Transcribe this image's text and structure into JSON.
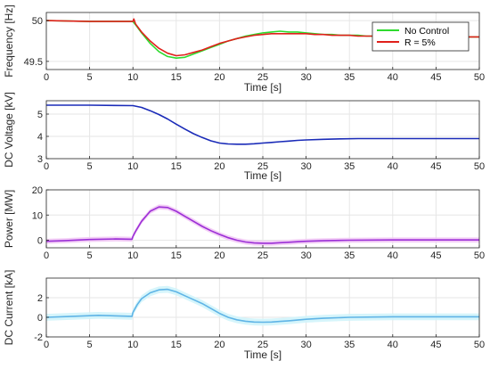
{
  "colors": {
    "no_control": "#2EDB2E",
    "r5": "#E0201B",
    "dc_voltage": "#1A2BB8",
    "power": "#9B2FD6",
    "power_band": "#F1C6F4",
    "dc_current": "#5FB4E6",
    "current_band": "#CFF3FA",
    "grid": "#E6E6E6",
    "axis": "#262626"
  },
  "chart_data": [
    {
      "type": "line",
      "xlabel": "Time [s]",
      "ylabel": "Frequency [Hz]",
      "xlim": [
        0,
        50
      ],
      "ylim": [
        49.4,
        50.1
      ],
      "xticks": [
        "0",
        "5",
        "10",
        "15",
        "20",
        "25",
        "30",
        "35",
        "40",
        "45",
        "50"
      ],
      "yticks": [
        "49.5",
        "50"
      ],
      "grid": true,
      "legend": "top-right",
      "series": [
        {
          "name": "No Control",
          "color_key": "no_control",
          "x": [
            0,
            5,
            10,
            10.3,
            11,
            12,
            13,
            14,
            15,
            16,
            17,
            18,
            19,
            20,
            21,
            22,
            23,
            24,
            25,
            26,
            27,
            28,
            29,
            30,
            31,
            32,
            33,
            34,
            35,
            36,
            37,
            38,
            39,
            40,
            41,
            42,
            43,
            44,
            45,
            46,
            47,
            48,
            49,
            50
          ],
          "y": [
            50.0,
            49.99,
            49.99,
            49.95,
            49.85,
            49.72,
            49.62,
            49.56,
            49.54,
            49.55,
            49.59,
            49.63,
            49.67,
            49.71,
            49.75,
            49.78,
            49.81,
            49.83,
            49.85,
            49.86,
            49.87,
            49.86,
            49.86,
            49.85,
            49.84,
            49.83,
            49.83,
            49.82,
            49.82,
            49.82,
            49.81,
            49.81,
            49.81,
            49.81,
            49.81,
            49.8,
            49.8,
            49.8,
            49.8,
            49.8,
            49.8,
            49.8,
            49.8,
            49.8
          ]
        },
        {
          "name": "R = 5%",
          "color_key": "r5",
          "x": [
            0,
            5,
            10,
            10.1,
            10.3,
            11,
            12,
            13,
            14,
            15,
            16,
            17,
            18,
            19,
            20,
            21,
            22,
            23,
            24,
            25,
            26,
            27,
            28,
            29,
            30,
            31,
            32,
            33,
            34,
            35,
            36,
            37,
            38,
            39,
            40,
            41,
            42,
            43,
            44,
            45,
            46,
            47,
            48,
            49,
            50
          ],
          "y": [
            50.0,
            49.99,
            49.99,
            50.02,
            49.96,
            49.86,
            49.75,
            49.66,
            49.6,
            49.57,
            49.58,
            49.61,
            49.64,
            49.68,
            49.72,
            49.75,
            49.78,
            49.8,
            49.82,
            49.83,
            49.84,
            49.84,
            49.84,
            49.84,
            49.84,
            49.83,
            49.83,
            49.82,
            49.82,
            49.82,
            49.81,
            49.81,
            49.81,
            49.81,
            49.81,
            49.81,
            49.8,
            49.8,
            49.8,
            49.8,
            49.8,
            49.8,
            49.8,
            49.8,
            49.8
          ]
        }
      ]
    },
    {
      "type": "line",
      "xlabel": "Time [s]",
      "ylabel": "DC Voltage [kV]",
      "xlim": [
        0,
        50
      ],
      "ylim": [
        3,
        5.6
      ],
      "xticks": [
        "0",
        "5",
        "10",
        "15",
        "20",
        "25",
        "30",
        "35",
        "40",
        "45",
        "50"
      ],
      "yticks": [
        "3",
        "4",
        "5"
      ],
      "grid": true,
      "series": [
        {
          "color_key": "dc_voltage",
          "x": [
            0,
            5,
            10,
            11,
            12,
            13,
            14,
            15,
            16,
            17,
            18,
            19,
            20,
            21,
            22,
            23,
            24,
            25,
            26,
            27,
            28,
            29,
            30,
            32,
            34,
            36,
            40,
            45,
            50
          ],
          "y": [
            5.4,
            5.4,
            5.38,
            5.3,
            5.15,
            4.98,
            4.78,
            4.55,
            4.33,
            4.12,
            3.95,
            3.8,
            3.7,
            3.66,
            3.65,
            3.65,
            3.67,
            3.7,
            3.73,
            3.76,
            3.79,
            3.82,
            3.84,
            3.87,
            3.89,
            3.9,
            3.9,
            3.9,
            3.9
          ]
        }
      ]
    },
    {
      "type": "line",
      "xlabel": "",
      "ylabel": "Power [MW]",
      "xlim": [
        0,
        50
      ],
      "ylim": [
        -3,
        20
      ],
      "xticks": [
        "0",
        "5",
        "10",
        "15",
        "20",
        "25",
        "30",
        "35",
        "40",
        "45",
        "50"
      ],
      "yticks": [
        "0",
        "10",
        "20"
      ],
      "grid": true,
      "series": [
        {
          "color_key": "power",
          "x": [
            0,
            2,
            5,
            8,
            9.9,
            10,
            10.3,
            11,
            12,
            13,
            14,
            15,
            16,
            17,
            18,
            19,
            20,
            21,
            22,
            23,
            24,
            25,
            26,
            27,
            28,
            29,
            30,
            32,
            35,
            40,
            45,
            50
          ],
          "y": [
            -0.4,
            -0.2,
            0.3,
            0.5,
            0.4,
            1.5,
            3.5,
            7.5,
            11.5,
            13.2,
            13.0,
            11.5,
            9.5,
            7.5,
            5.5,
            3.8,
            2.3,
            1.0,
            0.0,
            -0.7,
            -1.1,
            -1.2,
            -1.2,
            -1.0,
            -0.8,
            -0.6,
            -0.4,
            -0.2,
            0.0,
            0.1,
            0.1,
            0.1
          ]
        }
      ]
    },
    {
      "type": "line",
      "xlabel": "Time [s]",
      "ylabel": "DC Current [kA]",
      "xlim": [
        0,
        50
      ],
      "ylim": [
        -2,
        4
      ],
      "xticks": [
        "0",
        "5",
        "10",
        "15",
        "20",
        "25",
        "30",
        "35",
        "40",
        "45",
        "50"
      ],
      "yticks": [
        "-2",
        "0",
        "2"
      ],
      "grid": true,
      "series": [
        {
          "color_key": "dc_current",
          "x": [
            0,
            3,
            6,
            9.9,
            10,
            10.5,
            11,
            12,
            13,
            14,
            15,
            16,
            17,
            18,
            19,
            20,
            21,
            22,
            23,
            24,
            25,
            26,
            27,
            28,
            29,
            30,
            32,
            35,
            40,
            45,
            50
          ],
          "y": [
            0.0,
            0.1,
            0.2,
            0.1,
            0.5,
            1.3,
            1.9,
            2.5,
            2.8,
            2.85,
            2.6,
            2.2,
            1.8,
            1.4,
            0.9,
            0.4,
            0.0,
            -0.25,
            -0.4,
            -0.48,
            -0.5,
            -0.48,
            -0.42,
            -0.35,
            -0.28,
            -0.2,
            -0.1,
            0.0,
            0.05,
            0.05,
            0.05
          ]
        }
      ]
    }
  ]
}
